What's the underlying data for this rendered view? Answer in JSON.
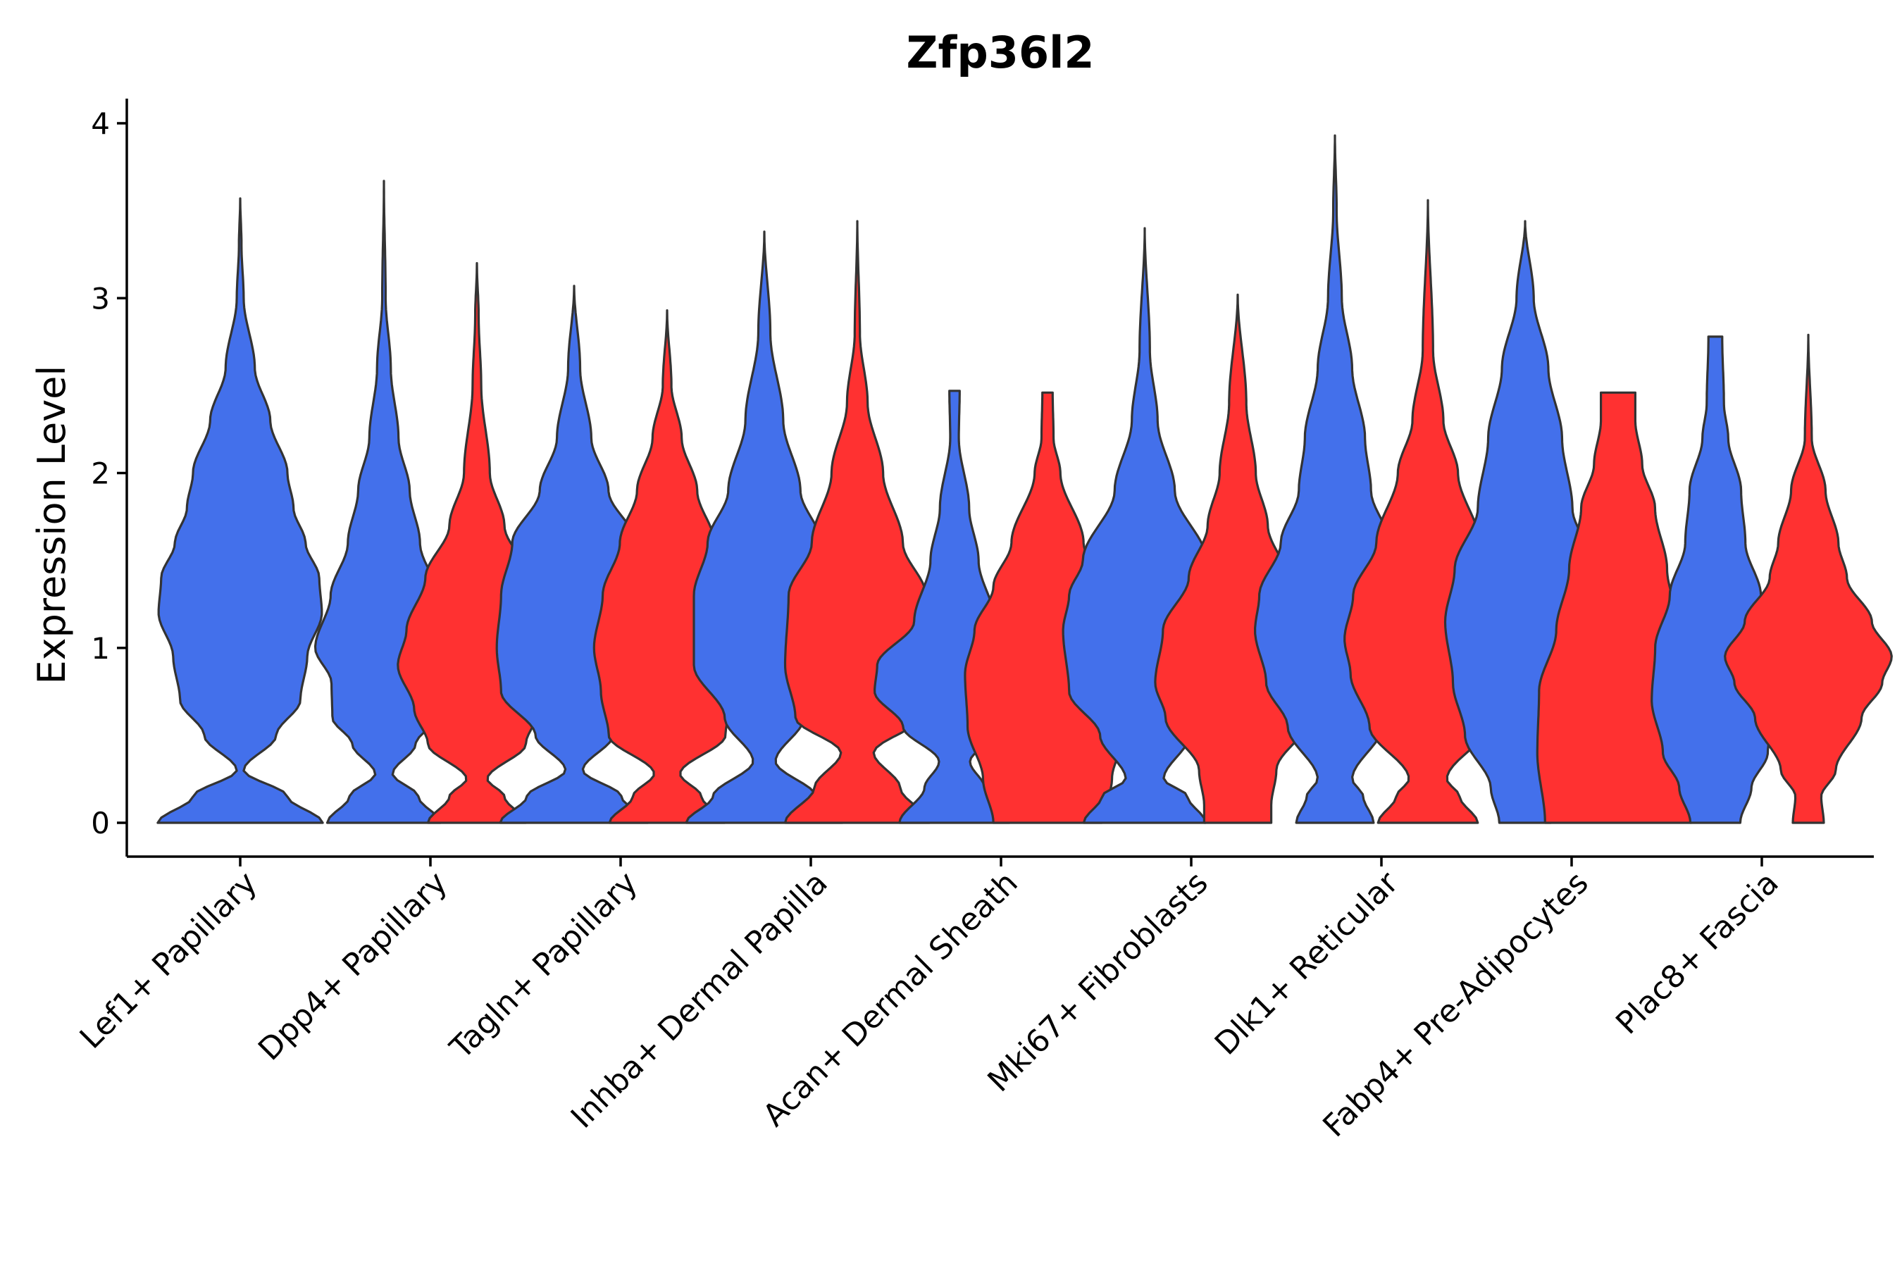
{
  "chart_data": {
    "type": "violin",
    "title": "Zfp36l2",
    "xlabel": "",
    "ylabel": "Expression Level",
    "ylim": [
      -0.2,
      4.15
    ],
    "yticks": [
      0,
      1,
      2,
      3,
      4
    ],
    "categories": [
      "Lef1+ Papillary",
      "Dpp4+ Papillary",
      "Tagln+ Papillary",
      "Inhba+ Dermal Papilla",
      "Acan+ Dermal Sheath",
      "Mki67+ Fibroblasts",
      "Dlk1+ Reticular",
      "Fabp4+ Pre-Adipocytes",
      "Plac8+ Fascia"
    ],
    "series": [
      {
        "name": "group1",
        "color": "#4370EB"
      },
      {
        "name": "group2",
        "color": "#FF3131"
      }
    ],
    "violins": [
      {
        "category": "Lef1+ Papillary",
        "group": "group1",
        "max": 3.57,
        "profile": [
          [
            0,
            0.96
          ],
          [
            0.15,
            0.55
          ],
          [
            0.3,
            0.04
          ],
          [
            0.5,
            0.42
          ],
          [
            0.7,
            0.7
          ],
          [
            0.95,
            0.78
          ],
          [
            1.2,
            0.95
          ],
          [
            1.4,
            0.92
          ],
          [
            1.6,
            0.76
          ],
          [
            1.8,
            0.62
          ],
          [
            2.0,
            0.55
          ],
          [
            2.3,
            0.35
          ],
          [
            2.6,
            0.17
          ],
          [
            3.0,
            0.04
          ],
          [
            3.3,
            0.015
          ],
          [
            3.57,
            0
          ]
        ]
      },
      {
        "category": "Dpp4+ Papillary",
        "group": "group1",
        "max": 3.67,
        "profile": [
          [
            0,
            0.66
          ],
          [
            0.15,
            0.4
          ],
          [
            0.28,
            0.1
          ],
          [
            0.45,
            0.37
          ],
          [
            0.6,
            0.6
          ],
          [
            0.8,
            0.61
          ],
          [
            1.0,
            0.8
          ],
          [
            1.3,
            0.62
          ],
          [
            1.6,
            0.42
          ],
          [
            1.9,
            0.3
          ],
          [
            2.2,
            0.17
          ],
          [
            2.6,
            0.08
          ],
          [
            3.0,
            0.02
          ],
          [
            3.67,
            0
          ]
        ]
      },
      {
        "category": "Dpp4+ Papillary",
        "group": "group2",
        "max": 3.2,
        "profile": [
          [
            0,
            0.57
          ],
          [
            0.15,
            0.32
          ],
          [
            0.25,
            0.12
          ],
          [
            0.45,
            0.57
          ],
          [
            0.65,
            0.73
          ],
          [
            0.9,
            0.92
          ],
          [
            1.1,
            0.82
          ],
          [
            1.4,
            0.6
          ],
          [
            1.7,
            0.32
          ],
          [
            2.0,
            0.15
          ],
          [
            2.5,
            0.05
          ],
          [
            2.9,
            0.02
          ],
          [
            3.2,
            0
          ]
        ]
      },
      {
        "category": "Tagln+ Papillary",
        "group": "group1",
        "max": 3.07,
        "profile": [
          [
            0,
            0.86
          ],
          [
            0.15,
            0.55
          ],
          [
            0.3,
            0.1
          ],
          [
            0.5,
            0.45
          ],
          [
            0.75,
            0.85
          ],
          [
            1.0,
            0.9
          ],
          [
            1.3,
            0.85
          ],
          [
            1.6,
            0.72
          ],
          [
            1.9,
            0.4
          ],
          [
            2.2,
            0.2
          ],
          [
            2.6,
            0.07
          ],
          [
            3.07,
            0
          ]
        ]
      },
      {
        "category": "Tagln+ Papillary",
        "group": "group2",
        "max": 2.93,
        "profile": [
          [
            0,
            0.67
          ],
          [
            0.15,
            0.4
          ],
          [
            0.28,
            0.15
          ],
          [
            0.5,
            0.68
          ],
          [
            0.75,
            0.77
          ],
          [
            1.0,
            0.85
          ],
          [
            1.3,
            0.75
          ],
          [
            1.6,
            0.55
          ],
          [
            1.9,
            0.35
          ],
          [
            2.2,
            0.17
          ],
          [
            2.5,
            0.05
          ],
          [
            2.93,
            0
          ]
        ]
      },
      {
        "category": "Inhba+ Dermal Papilla",
        "group": "group1",
        "max": 3.38,
        "profile": [
          [
            0,
            0.91
          ],
          [
            0.15,
            0.6
          ],
          [
            0.35,
            0.13
          ],
          [
            0.6,
            0.46
          ],
          [
            0.9,
            0.82
          ],
          [
            1.3,
            0.82
          ],
          [
            1.6,
            0.66
          ],
          [
            1.9,
            0.42
          ],
          [
            2.3,
            0.22
          ],
          [
            2.8,
            0.07
          ],
          [
            3.38,
            0
          ]
        ]
      },
      {
        "category": "Inhba+ Dermal Papilla",
        "group": "group2",
        "max": 3.44,
        "profile": [
          [
            0,
            0.84
          ],
          [
            0.2,
            0.5
          ],
          [
            0.4,
            0.19
          ],
          [
            0.6,
            0.72
          ],
          [
            0.9,
            0.84
          ],
          [
            1.3,
            0.8
          ],
          [
            1.6,
            0.53
          ],
          [
            2.0,
            0.3
          ],
          [
            2.4,
            0.12
          ],
          [
            2.8,
            0.03
          ],
          [
            3.44,
            0
          ]
        ]
      },
      {
        "category": "Acan+ Dermal Sheath",
        "group": "group1",
        "max": 2.47,
        "profile": [
          [
            0,
            0.64
          ],
          [
            0.2,
            0.35
          ],
          [
            0.35,
            0.18
          ],
          [
            0.55,
            0.6
          ],
          [
            0.75,
            0.93
          ],
          [
            0.9,
            0.9
          ],
          [
            1.15,
            0.47
          ],
          [
            1.5,
            0.28
          ],
          [
            1.8,
            0.17
          ],
          [
            2.2,
            0.05
          ],
          [
            2.47,
            0.06
          ]
        ]
      },
      {
        "category": "Acan+ Dermal Sheath",
        "group": "group2",
        "max": 2.46,
        "profile": [
          [
            0,
            0.63
          ],
          [
            0.25,
            0.75
          ],
          [
            0.55,
            0.93
          ],
          [
            0.85,
            0.96
          ],
          [
            1.1,
            0.85
          ],
          [
            1.35,
            0.63
          ],
          [
            1.6,
            0.42
          ],
          [
            2.0,
            0.15
          ],
          [
            2.2,
            0.07
          ],
          [
            2.46,
            0.06
          ]
        ]
      },
      {
        "category": "Mki67+ Fibroblasts",
        "group": "group1",
        "max": 3.4,
        "profile": [
          [
            0,
            0.71
          ],
          [
            0.15,
            0.5
          ],
          [
            0.25,
            0.22
          ],
          [
            0.5,
            0.52
          ],
          [
            0.75,
            0.88
          ],
          [
            1.1,
            0.95
          ],
          [
            1.3,
            0.88
          ],
          [
            1.5,
            0.72
          ],
          [
            1.9,
            0.35
          ],
          [
            2.3,
            0.15
          ],
          [
            2.7,
            0.06
          ],
          [
            3.4,
            0
          ]
        ]
      },
      {
        "category": "Mki67+ Fibroblasts",
        "group": "group2",
        "max": 3.02,
        "profile": [
          [
            0,
            0.39
          ],
          [
            0.1,
            0.39
          ],
          [
            0.3,
            0.45
          ],
          [
            0.6,
            0.84
          ],
          [
            0.8,
            0.96
          ],
          [
            1.1,
            0.87
          ],
          [
            1.4,
            0.57
          ],
          [
            1.7,
            0.35
          ],
          [
            2.0,
            0.21
          ],
          [
            2.4,
            0.1
          ],
          [
            3.02,
            0
          ]
        ]
      },
      {
        "category": "Dlk1+ Reticular",
        "group": "group1",
        "max": 3.93,
        "profile": [
          [
            0,
            0.45
          ],
          [
            0.15,
            0.33
          ],
          [
            0.25,
            0.2
          ],
          [
            0.55,
            0.55
          ],
          [
            0.8,
            0.8
          ],
          [
            1.1,
            0.93
          ],
          [
            1.3,
            0.88
          ],
          [
            1.6,
            0.63
          ],
          [
            1.9,
            0.42
          ],
          [
            2.2,
            0.35
          ],
          [
            2.6,
            0.2
          ],
          [
            3.0,
            0.08
          ],
          [
            3.5,
            0.02
          ],
          [
            3.93,
            0
          ]
        ]
      },
      {
        "category": "Dlk1+ Reticular",
        "group": "group2",
        "max": 3.56,
        "profile": [
          [
            0,
            0.58
          ],
          [
            0.15,
            0.37
          ],
          [
            0.25,
            0.22
          ],
          [
            0.55,
            0.68
          ],
          [
            0.85,
            0.9
          ],
          [
            1.05,
            0.97
          ],
          [
            1.3,
            0.87
          ],
          [
            1.6,
            0.6
          ],
          [
            2.0,
            0.35
          ],
          [
            2.3,
            0.18
          ],
          [
            2.7,
            0.06
          ],
          [
            3.56,
            0
          ]
        ]
      },
      {
        "category": "Fabp4+ Pre-Adipocytes",
        "group": "group1",
        "max": 3.44,
        "profile": [
          [
            0,
            0.3
          ],
          [
            0.2,
            0.4
          ],
          [
            0.5,
            0.7
          ],
          [
            0.8,
            0.84
          ],
          [
            1.15,
            0.93
          ],
          [
            1.45,
            0.82
          ],
          [
            1.8,
            0.55
          ],
          [
            2.2,
            0.43
          ],
          [
            2.6,
            0.27
          ],
          [
            3.0,
            0.1
          ],
          [
            3.44,
            0
          ]
        ]
      },
      {
        "category": "Fabp4+ Pre-Adipocytes",
        "group": "group2",
        "max": 2.46,
        "profile": [
          [
            0,
            0.85
          ],
          [
            0.4,
            0.94
          ],
          [
            0.75,
            0.92
          ],
          [
            1.1,
            0.72
          ],
          [
            1.45,
            0.57
          ],
          [
            1.8,
            0.43
          ],
          [
            2.05,
            0.28
          ],
          [
            2.3,
            0.2
          ],
          [
            2.46,
            0.2
          ]
        ]
      },
      {
        "category": "Plac8+ Fascia",
        "group": "group1",
        "max": 2.78,
        "profile": [
          [
            0,
            0.29
          ],
          [
            0.2,
            0.42
          ],
          [
            0.4,
            0.61
          ],
          [
            0.7,
            0.74
          ],
          [
            1.0,
            0.7
          ],
          [
            1.3,
            0.53
          ],
          [
            1.6,
            0.35
          ],
          [
            1.9,
            0.3
          ],
          [
            2.2,
            0.15
          ],
          [
            2.4,
            0.1
          ],
          [
            2.78,
            0.08
          ]
        ]
      },
      {
        "category": "Plac8+ Fascia",
        "group": "group2",
        "max": 2.79,
        "profile": [
          [
            0,
            0.18
          ],
          [
            0.15,
            0.15
          ],
          [
            0.3,
            0.32
          ],
          [
            0.6,
            0.62
          ],
          [
            0.8,
            0.86
          ],
          [
            0.95,
            0.97
          ],
          [
            1.15,
            0.74
          ],
          [
            1.4,
            0.45
          ],
          [
            1.6,
            0.35
          ],
          [
            1.9,
            0.2
          ],
          [
            2.2,
            0.04
          ],
          [
            2.79,
            0
          ]
        ]
      }
    ]
  }
}
